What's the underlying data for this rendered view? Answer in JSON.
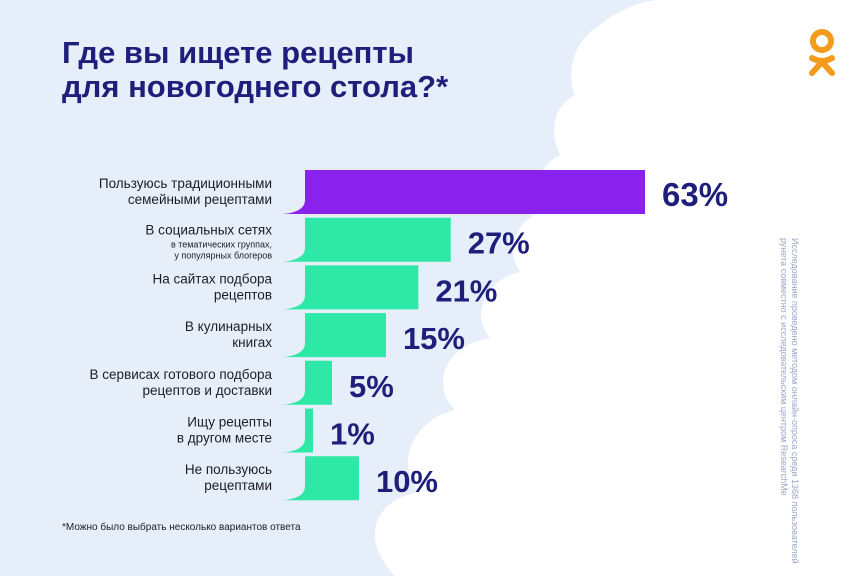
{
  "title": {
    "line1": "Где вы ищете рецепты",
    "line2": "для новогоднего стола?*"
  },
  "footnote": "*Можно было выбрать несколько вариантов ответа",
  "source_note": {
    "line1": "Исследование проведено методом онлайн-опроса среди 1368 пользователей",
    "line2": "рунета совместно с исследовательским центром ResearchMe"
  },
  "logo_icon": "odnoklassniki-logo-icon",
  "colors": {
    "highlight_bar": "#8a22ee",
    "bar": "#2ee8a8",
    "value_text": "#1e1f7a",
    "logo": "#f39b1c"
  },
  "chart_data": {
    "type": "bar",
    "orientation": "horizontal",
    "categories": [
      {
        "lines": [
          "Пользуюсь традиционными",
          "семейными рецептами"
        ],
        "sub": []
      },
      {
        "lines": [
          "В социальных сетях"
        ],
        "sub": [
          "в тематических группах,",
          "у популярных блогеров"
        ]
      },
      {
        "lines": [
          "На сайтах подбора",
          "рецептов"
        ],
        "sub": []
      },
      {
        "lines": [
          "В кулинарных",
          "книгах"
        ],
        "sub": []
      },
      {
        "lines": [
          "В сервисах готового подбора",
          "рецептов и доставки"
        ],
        "sub": []
      },
      {
        "lines": [
          "Ищу рецепты",
          "в другом месте"
        ],
        "sub": []
      },
      {
        "lines": [
          "Не пользуюсь",
          "рецептами"
        ],
        "sub": []
      }
    ],
    "values": [
      63,
      27,
      21,
      15,
      5,
      1,
      10
    ],
    "value_labels": [
      "63%",
      "27%",
      "21%",
      "15%",
      "5%",
      "1%",
      "10%"
    ],
    "unit": "%",
    "highlight_index": 0,
    "xlim": [
      0,
      63
    ]
  }
}
